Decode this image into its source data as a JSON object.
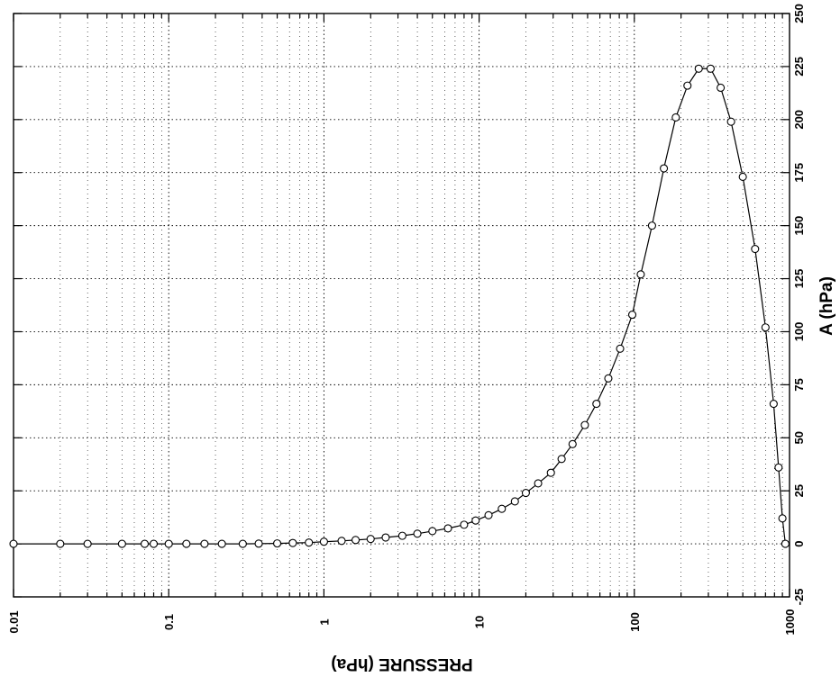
{
  "chart_data": {
    "type": "line",
    "orientation": "rotated-90-clockwise",
    "xlabel": "PRESSURE (hPa)",
    "ylabel": "A  (hPa)",
    "x_scale": "log",
    "xlim": [
      0.01,
      1000
    ],
    "ylim": [
      -25,
      250
    ],
    "grid": true,
    "marker": "open-circle",
    "x_ticks": [
      0.01,
      0.1,
      1,
      10,
      100,
      1000
    ],
    "x_tick_labels": [
      "0.01",
      "0.1",
      "1",
      "10",
      "100",
      "1000"
    ],
    "y_ticks": [
      -25,
      0,
      25,
      50,
      75,
      100,
      125,
      150,
      175,
      200,
      225,
      250
    ],
    "y_tick_labels": [
      "-25",
      "0",
      "25",
      "50",
      "75",
      "100",
      "125",
      "150",
      "175",
      "200",
      "225",
      "250"
    ],
    "series": [
      {
        "x": [
          0.01,
          0.02,
          0.03,
          0.05,
          0.07,
          0.08,
          0.1,
          0.13,
          0.17,
          0.22,
          0.3,
          0.38,
          0.5,
          0.63,
          0.8,
          1.0,
          1.3,
          1.6,
          2.0,
          2.5,
          3.2,
          4.0,
          5.0,
          6.3,
          8.0,
          9.5,
          11.5,
          14,
          17,
          20,
          24,
          29,
          34,
          40,
          48,
          57,
          68,
          81,
          97,
          110,
          130,
          155,
          185,
          220,
          260,
          310,
          360,
          420,
          500,
          600,
          700,
          790,
          850,
          900,
          940
        ],
        "y": [
          0,
          0,
          0,
          0,
          0,
          0,
          0,
          0,
          0,
          0,
          0,
          0.1,
          0.2,
          0.4,
          0.6,
          1,
          1.4,
          1.8,
          2.3,
          3,
          3.8,
          4.8,
          6,
          7.3,
          9,
          11,
          13.5,
          16.5,
          20,
          24,
          28.5,
          33.5,
          40,
          47,
          56,
          66,
          78,
          92,
          108,
          127,
          150,
          177,
          201,
          216,
          224,
          224,
          215,
          199,
          173,
          139,
          102,
          66,
          36,
          12,
          0
        ]
      }
    ]
  }
}
